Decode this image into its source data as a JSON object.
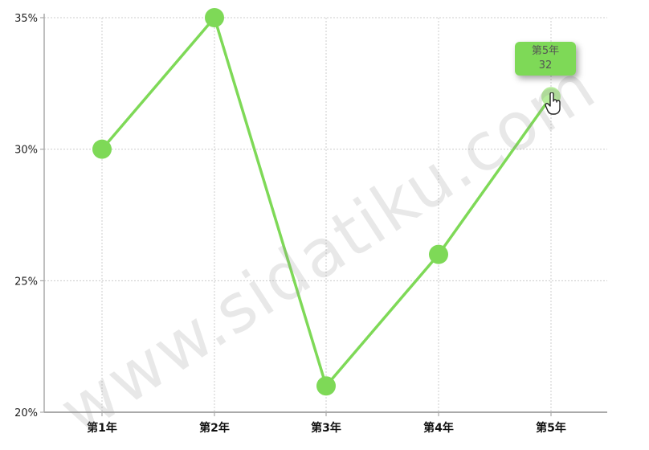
{
  "chart_data": {
    "type": "line",
    "categories": [
      "第1年",
      "第2年",
      "第3年",
      "第4年",
      "第5年"
    ],
    "series": [
      {
        "values": [
          30,
          35,
          21,
          26,
          32
        ]
      }
    ],
    "y_ticks": [
      "20%",
      "25%",
      "30%",
      "35%"
    ],
    "ylim": [
      20,
      35
    ],
    "grid": true,
    "color": "#7ed957"
  },
  "tooltip": {
    "category": "第5年",
    "value": "32"
  },
  "watermark": "www.sidatiku.com",
  "icons": {
    "cursor": "hand-pointer-icon"
  }
}
